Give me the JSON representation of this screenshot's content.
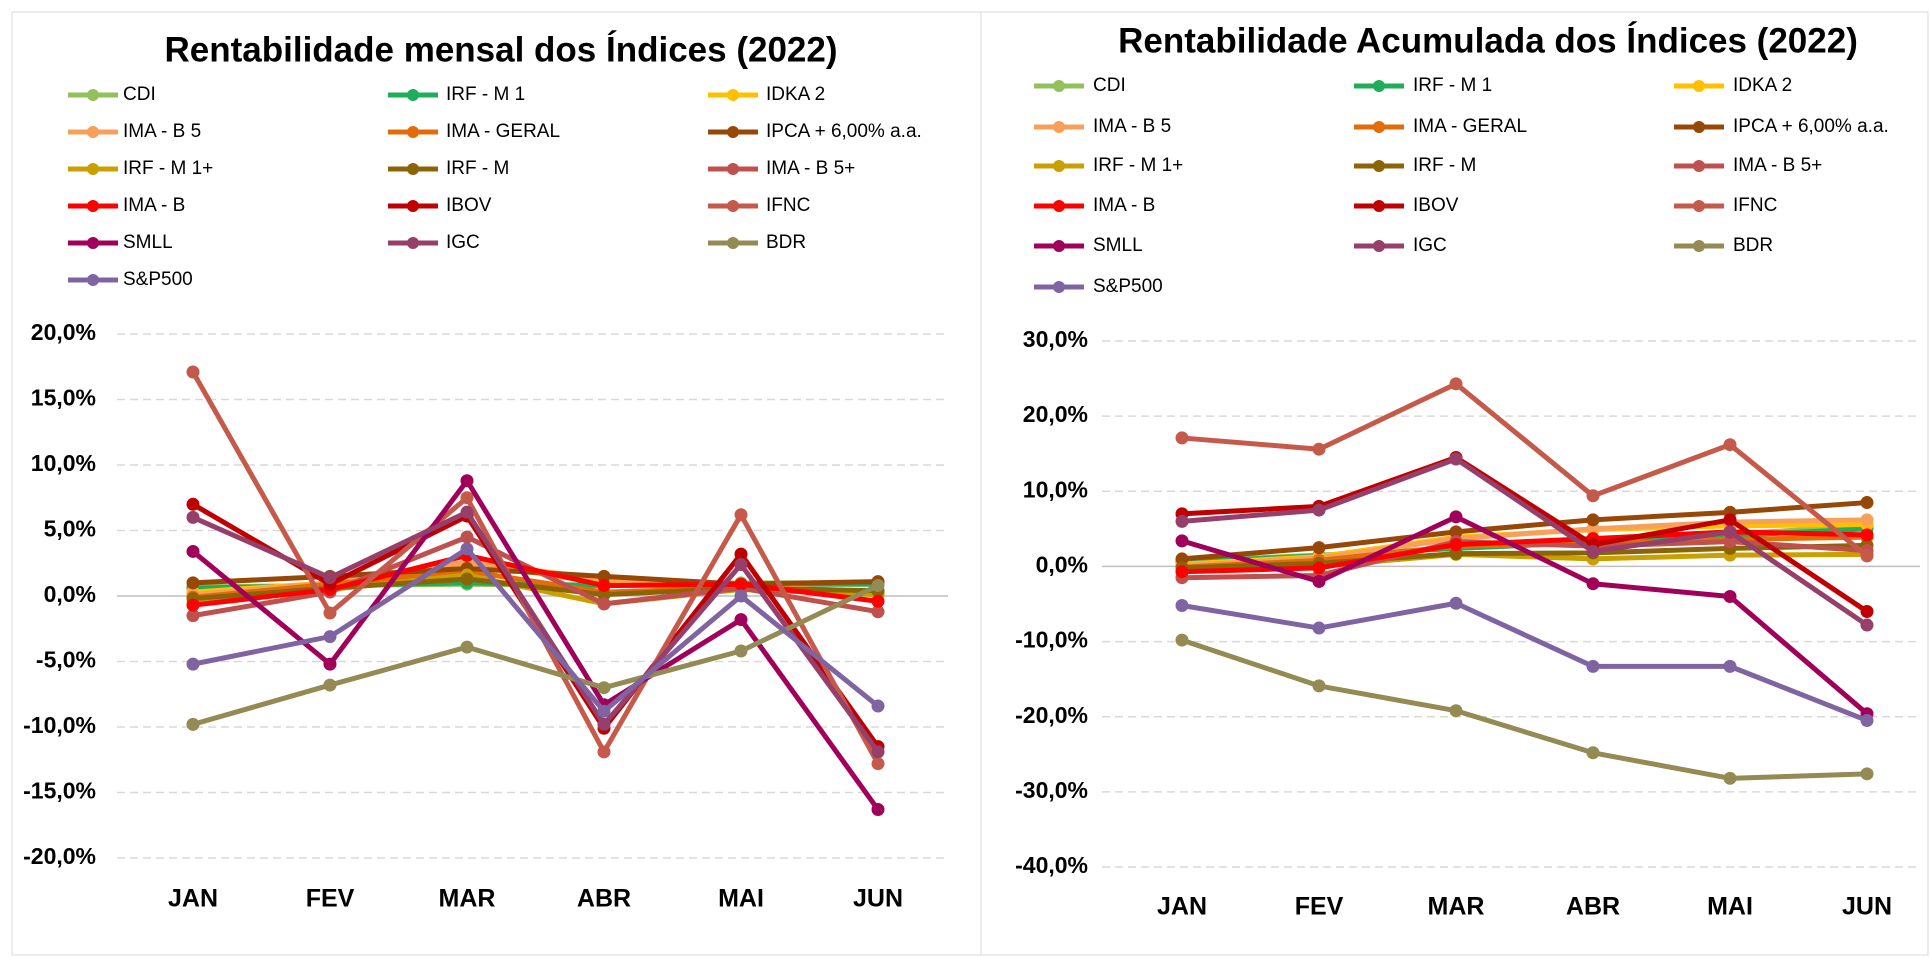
{
  "chart_data": [
    {
      "type": "line",
      "title": "Rentabilidade mensal dos Índices (2022)",
      "categories": [
        "JAN",
        "FEV",
        "MAR",
        "ABR",
        "MAI",
        "JUN"
      ],
      "ylim": [
        -20,
        20
      ],
      "yticks": [
        {
          "value": -20,
          "label": "-20,0%"
        },
        {
          "value": -15,
          "label": "-15,0%"
        },
        {
          "value": -10,
          "label": "-10,0%"
        },
        {
          "value": -5,
          "label": "-5,0%"
        },
        {
          "value": 0,
          "label": "0,0%"
        },
        {
          "value": 5,
          "label": "5,0%"
        },
        {
          "value": 10,
          "label": "10,0%"
        },
        {
          "value": 15,
          "label": "15,0%"
        },
        {
          "value": 20,
          "label": "20,0%"
        }
      ],
      "grid": true,
      "series": [
        {
          "name": "CDI",
          "color": "#92c05a",
          "values": [
            0.7,
            0.8,
            0.9,
            0.8,
            1.0,
            1.0
          ]
        },
        {
          "name": "IRF - M 1",
          "color": "#1fad5a",
          "values": [
            0.6,
            0.8,
            1.0,
            0.8,
            0.9,
            0.9
          ]
        },
        {
          "name": "IDKA 2",
          "color": "#ffc000",
          "values": [
            0.3,
            1.0,
            2.5,
            1.0,
            0.5,
            0.2
          ]
        },
        {
          "name": "IMA - B 5",
          "color": "#f8a05a",
          "values": [
            0.1,
            1.0,
            2.6,
            1.3,
            0.8,
            0.3
          ]
        },
        {
          "name": "IMA - GERAL",
          "color": "#e36c09",
          "values": [
            -0.1,
            0.9,
            1.9,
            0.3,
            0.6,
            0.3
          ]
        },
        {
          "name": "IPCA + 6,00% a.a.",
          "color": "#974706",
          "values": [
            1.0,
            1.5,
            2.1,
            1.5,
            0.9,
            1.1
          ]
        },
        {
          "name": "IRF - M 1+",
          "color": "#c9a000",
          "values": [
            -0.5,
            0.5,
            1.6,
            -0.6,
            0.5,
            0.1
          ]
        },
        {
          "name": "IRF - M",
          "color": "#8c6408",
          "values": [
            -0.2,
            0.6,
            1.3,
            0.1,
            0.6,
            0.4
          ]
        },
        {
          "name": "IMA - B 5+",
          "color": "#c0504d",
          "values": [
            -1.5,
            0.3,
            4.5,
            -0.6,
            0.6,
            -1.2
          ]
        },
        {
          "name": "IMA - B",
          "color": "#ff0000",
          "values": [
            -0.7,
            0.5,
            3.1,
            0.8,
            0.9,
            -0.4
          ]
        },
        {
          "name": "IBOV",
          "color": "#c00000",
          "values": [
            7.0,
            0.9,
            6.1,
            -10.1,
            3.2,
            -11.5
          ]
        },
        {
          "name": "IFNC",
          "color": "#c55a4a",
          "values": [
            17.1,
            -1.3,
            7.5,
            -11.9,
            6.2,
            -12.8
          ]
        },
        {
          "name": "SMLL",
          "color": "#a0005a",
          "values": [
            3.4,
            -5.2,
            8.8,
            -8.3,
            -1.8,
            -16.3
          ]
        },
        {
          "name": "IGC",
          "color": "#953f6a",
          "values": [
            6.0,
            1.4,
            6.4,
            -9.8,
            2.4,
            -11.9
          ]
        },
        {
          "name": "BDR",
          "color": "#948a54",
          "values": [
            -9.8,
            -6.8,
            -3.9,
            -7.0,
            -4.2,
            0.8
          ]
        },
        {
          "name": "S&P500",
          "color": "#8064a2",
          "values": [
            -5.2,
            -3.1,
            3.6,
            -8.8,
            0.0,
            -8.4
          ]
        }
      ]
    },
    {
      "type": "line",
      "title": "Rentabilidade Acumulada dos Índices (2022)",
      "categories": [
        "JAN",
        "FEV",
        "MAR",
        "ABR",
        "MAI",
        "JUN"
      ],
      "ylim": [
        -40,
        30
      ],
      "yticks": [
        {
          "value": -40,
          "label": "-40,0%"
        },
        {
          "value": -30,
          "label": "-30,0%"
        },
        {
          "value": -20,
          "label": "-20,0%"
        },
        {
          "value": -10,
          "label": "-10,0%"
        },
        {
          "value": 0,
          "label": "0,0%"
        },
        {
          "value": 10,
          "label": "10,0%"
        },
        {
          "value": 20,
          "label": "20,0%"
        },
        {
          "value": 30,
          "label": "30,0%"
        }
      ],
      "grid": true,
      "series": [
        {
          "name": "CDI",
          "color": "#92c05a",
          "values": [
            0.7,
            1.5,
            2.4,
            3.2,
            4.3,
            5.4
          ]
        },
        {
          "name": "IRF - M 1",
          "color": "#1fad5a",
          "values": [
            0.6,
            1.4,
            2.4,
            3.2,
            4.1,
            5.0
          ]
        },
        {
          "name": "IDKA 2",
          "color": "#ffc000",
          "values": [
            0.3,
            1.3,
            3.9,
            4.9,
            5.4,
            5.6
          ]
        },
        {
          "name": "IMA - B 5",
          "color": "#f8a05a",
          "values": [
            0.1,
            1.1,
            3.7,
            5.0,
            5.9,
            6.2
          ]
        },
        {
          "name": "IMA - GERAL",
          "color": "#e36c09",
          "values": [
            -0.1,
            0.8,
            2.7,
            3.0,
            3.6,
            3.9
          ]
        },
        {
          "name": "IPCA + 6,00% a.a.",
          "color": "#974706",
          "values": [
            1.0,
            2.5,
            4.6,
            6.2,
            7.2,
            8.5
          ]
        },
        {
          "name": "IRF - M 1+",
          "color": "#c9a000",
          "values": [
            -0.5,
            0.0,
            1.6,
            1.0,
            1.5,
            1.6
          ]
        },
        {
          "name": "IRF - M",
          "color": "#8c6408",
          "values": [
            -0.2,
            0.4,
            1.7,
            1.8,
            2.4,
            2.8
          ]
        },
        {
          "name": "IMA - B 5+",
          "color": "#c0504d",
          "values": [
            -1.5,
            -1.2,
            3.3,
            2.7,
            3.3,
            2.1
          ]
        },
        {
          "name": "IMA - B",
          "color": "#ff0000",
          "values": [
            -0.7,
            -0.2,
            2.9,
            3.7,
            4.6,
            4.2
          ]
        },
        {
          "name": "IBOV",
          "color": "#c00000",
          "values": [
            7.0,
            8.0,
            14.5,
            2.9,
            6.2,
            -6.0
          ]
        },
        {
          "name": "IFNC",
          "color": "#c55a4a",
          "values": [
            17.1,
            15.6,
            24.3,
            9.4,
            16.2,
            1.4
          ]
        },
        {
          "name": "SMLL",
          "color": "#a0005a",
          "values": [
            3.4,
            -2.0,
            6.6,
            -2.3,
            -4.0,
            -19.6
          ]
        },
        {
          "name": "IGC",
          "color": "#953f6a",
          "values": [
            6.0,
            7.5,
            14.3,
            2.0,
            4.6,
            -7.8
          ]
        },
        {
          "name": "BDR",
          "color": "#948a54",
          "values": [
            -9.8,
            -15.9,
            -19.2,
            -24.8,
            -28.2,
            -27.6
          ]
        },
        {
          "name": "S&P500",
          "color": "#8064a2",
          "values": [
            -5.2,
            -8.2,
            -4.9,
            -13.3,
            -13.3,
            -20.5
          ]
        }
      ]
    }
  ]
}
